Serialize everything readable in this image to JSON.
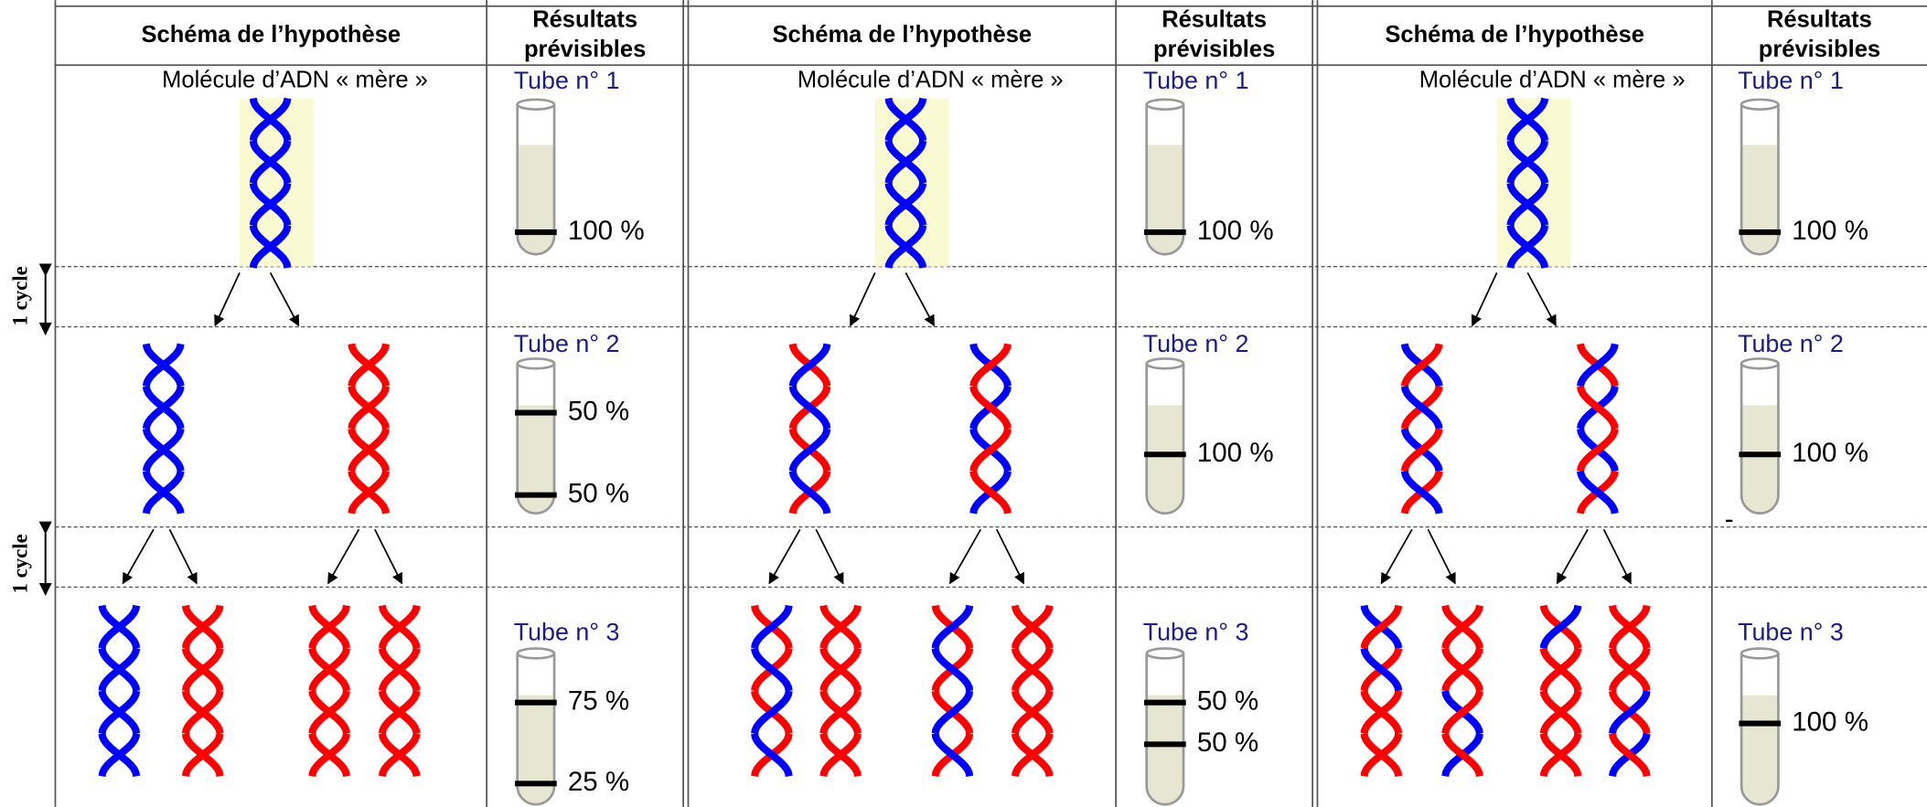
{
  "side_labels": [
    "1 cycle",
    "1 cycle"
  ],
  "panels": [
    {
      "schema_header": "Schéma de l’hypothèse",
      "results_header": [
        "Résultats",
        "prévisibles"
      ],
      "mother_label": "Molécule d’ADN « mère »",
      "tubes": [
        {
          "label": "Tube n° 1",
          "bands": [
            "100 %"
          ]
        },
        {
          "label": "Tube n° 2",
          "bands": [
            "50 %",
            "50 %"
          ]
        },
        {
          "label": "Tube n° 3",
          "bands": [
            "75 %",
            "25 %"
          ]
        }
      ]
    },
    {
      "schema_header": "Schéma de l’hypothèse",
      "results_header": [
        "Résultats",
        "prévisibles"
      ],
      "mother_label": "Molécule d’ADN « mère »",
      "tubes": [
        {
          "label": "Tube n° 1",
          "bands": [
            "100 %"
          ]
        },
        {
          "label": "Tube n° 2",
          "bands": [
            "100 %"
          ]
        },
        {
          "label": "Tube n° 3",
          "bands": [
            "50 %",
            "50 %"
          ]
        }
      ]
    },
    {
      "schema_header": "Schéma de l’hypothèse",
      "results_header": [
        "Résultats",
        "prévisibles"
      ],
      "mother_label": "Molécule d’ADN « mère »",
      "tubes": [
        {
          "label": "Tube n° 1",
          "bands": [
            "100 %"
          ]
        },
        {
          "label": "Tube n° 2",
          "bands": [
            "100 %"
          ]
        },
        {
          "label": "Tube n° 3",
          "bands": [
            "100 %"
          ]
        }
      ]
    }
  ],
  "stray_mark": "-"
}
